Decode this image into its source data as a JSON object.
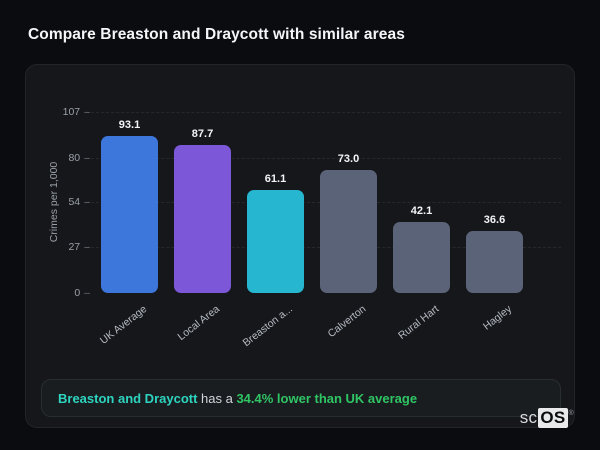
{
  "title": "Compare Breaston and Draycott with similar areas",
  "chart_data": {
    "type": "bar",
    "categories": [
      "UK Average",
      "Local Area",
      "Breaston a...",
      "Calverton",
      "Rural Hart",
      "Hagley"
    ],
    "values": [
      93.1,
      87.7,
      61.1,
      73.0,
      42.1,
      36.6
    ],
    "value_labels": [
      "93.1",
      "87.7",
      "61.1",
      "73.0",
      "42.1",
      "36.6"
    ],
    "bar_colors": [
      "#3d77dc",
      "#7c58d8",
      "#27b6cf",
      "#5a6377",
      "#5a6377",
      "#5a6377"
    ],
    "title": "",
    "xlabel": "",
    "ylabel": "Crimes per 1,000",
    "yticks": [
      107,
      80,
      54,
      27,
      0
    ],
    "ylim": [
      0,
      107
    ],
    "grid": "horizontal-dashed",
    "legend": "none"
  },
  "note": {
    "highlight": "Breaston and Draycott",
    "middle": " has a ",
    "stat": "34.4% lower than UK average"
  },
  "logo": {
    "prefix": "sc",
    "box": "OS",
    "registered": "®"
  }
}
